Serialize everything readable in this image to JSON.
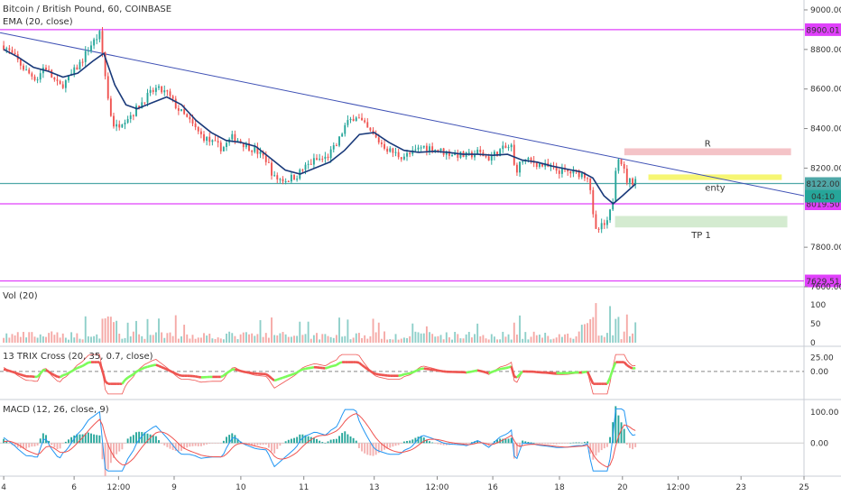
{
  "chart_data": {
    "type": "candlestick",
    "title": "Bitcoin / British Pound, 60, COINBASE",
    "overlay_label": "EMA (20, close)",
    "price_axis": {
      "range": [
        7600,
        9050
      ],
      "ticks": [
        "9000.00",
        "8800.00",
        "8600.00",
        "8400.00",
        "8200.00",
        "7800.00",
        "7600.00"
      ],
      "tick_values": [
        9000,
        8800,
        8600,
        8400,
        8200,
        7800,
        7600
      ]
    },
    "x_ticks": [
      {
        "label": "4",
        "x": 0.0
      },
      {
        "label": "6",
        "x": 1.9
      },
      {
        "label": "12:00",
        "x": 3.1
      },
      {
        "label": "9",
        "x": 4.6
      },
      {
        "label": "10",
        "x": 6.4
      },
      {
        "label": "11",
        "x": 8.1
      },
      {
        "label": "13",
        "x": 10.0
      },
      {
        "label": "12:00",
        "x": 11.7
      },
      {
        "label": "16",
        "x": 13.2
      },
      {
        "label": "18",
        "x": 15.0
      },
      {
        "label": "20",
        "x": 16.7
      },
      {
        "label": "12:00",
        "x": 18.2
      },
      {
        "label": "23",
        "x": 19.9
      },
      {
        "label": "25",
        "x": 21.6
      }
    ],
    "x_range": [
      -0.1,
      21.6
    ],
    "horizontal_lines": [
      {
        "value": 8900.01,
        "label": "8900.01",
        "color": "#e040fb"
      },
      {
        "value": 8019.5,
        "label": "8019.50",
        "color": "#e040fb"
      },
      {
        "value": 7629.51,
        "label": "7629.51",
        "color": "#e040fb"
      },
      {
        "value": 8122.0,
        "label": "8122.00",
        "color": "#4fa8a8"
      }
    ],
    "countdown": "04:10",
    "trendline": {
      "start": [
        -0.1,
        8885
      ],
      "end": [
        21.6,
        8060
      ],
      "color": "#3f51b5"
    },
    "zones": [
      {
        "label": "R",
        "x": [
          16.75,
          21.25
        ],
        "y": [
          8265,
          8300
        ],
        "color": "#f2b8bd"
      },
      {
        "label": "enty",
        "x": [
          17.4,
          21.0
        ],
        "y": [
          8140,
          8168
        ],
        "color": "#f5f55a"
      },
      {
        "label": "TP 1",
        "x": [
          16.5,
          21.15
        ],
        "y": [
          7900,
          7958
        ],
        "color": "#cce8c8"
      }
    ],
    "price_path": [
      [
        0.0,
        8820
      ],
      [
        0.3,
        8760
      ],
      [
        0.6,
        8690
      ],
      [
        0.9,
        8650
      ],
      [
        1.1,
        8720
      ],
      [
        1.3,
        8660
      ],
      [
        1.5,
        8610
      ],
      [
        1.7,
        8640
      ],
      [
        1.9,
        8690
      ],
      [
        2.1,
        8740
      ],
      [
        2.3,
        8810
      ],
      [
        2.6,
        8880
      ],
      [
        2.85,
        8500
      ],
      [
        3.0,
        8400
      ],
      [
        3.2,
        8440
      ],
      [
        3.5,
        8480
      ],
      [
        3.8,
        8550
      ],
      [
        4.1,
        8600
      ],
      [
        4.4,
        8580
      ],
      [
        4.7,
        8500
      ],
      [
        5.0,
        8440
      ],
      [
        5.3,
        8370
      ],
      [
        5.6,
        8330
      ],
      [
        5.9,
        8300
      ],
      [
        6.2,
        8360
      ],
      [
        6.5,
        8320
      ],
      [
        6.8,
        8290
      ],
      [
        7.1,
        8240
      ],
      [
        7.3,
        8150
      ],
      [
        7.6,
        8140
      ],
      [
        7.9,
        8160
      ],
      [
        8.1,
        8200
      ],
      [
        8.4,
        8240
      ],
      [
        8.7,
        8250
      ],
      [
        9.0,
        8320
      ],
      [
        9.2,
        8410
      ],
      [
        9.5,
        8470
      ],
      [
        9.8,
        8400
      ],
      [
        10.1,
        8340
      ],
      [
        10.4,
        8290
      ],
      [
        10.7,
        8260
      ],
      [
        11.0,
        8270
      ],
      [
        11.3,
        8310
      ],
      [
        11.6,
        8300
      ],
      [
        11.9,
        8280
      ],
      [
        12.2,
        8270
      ],
      [
        12.5,
        8260
      ],
      [
        12.8,
        8280
      ],
      [
        13.1,
        8250
      ],
      [
        13.4,
        8290
      ],
      [
        13.7,
        8310
      ],
      [
        13.8,
        8180
      ],
      [
        14.0,
        8240
      ],
      [
        14.3,
        8230
      ],
      [
        14.6,
        8210
      ],
      [
        14.9,
        8190
      ],
      [
        15.2,
        8180
      ],
      [
        15.5,
        8175
      ],
      [
        15.8,
        8160
      ],
      [
        15.95,
        7870
      ],
      [
        16.1,
        7900
      ],
      [
        16.3,
        7920
      ],
      [
        16.45,
        8050
      ],
      [
        16.55,
        8280
      ],
      [
        16.7,
        8220
      ],
      [
        16.8,
        8140
      ],
      [
        16.95,
        8130
      ],
      [
        17.05,
        8150
      ]
    ],
    "ema_path": [
      [
        0.0,
        8800
      ],
      [
        0.4,
        8760
      ],
      [
        0.8,
        8710
      ],
      [
        1.2,
        8690
      ],
      [
        1.6,
        8660
      ],
      [
        2.0,
        8680
      ],
      [
        2.4,
        8740
      ],
      [
        2.7,
        8780
      ],
      [
        3.0,
        8620
      ],
      [
        3.3,
        8520
      ],
      [
        3.6,
        8500
      ],
      [
        4.0,
        8530
      ],
      [
        4.4,
        8560
      ],
      [
        4.8,
        8520
      ],
      [
        5.2,
        8440
      ],
      [
        5.6,
        8380
      ],
      [
        6.0,
        8340
      ],
      [
        6.4,
        8330
      ],
      [
        6.8,
        8310
      ],
      [
        7.2,
        8250
      ],
      [
        7.6,
        8190
      ],
      [
        8.0,
        8170
      ],
      [
        8.4,
        8200
      ],
      [
        8.8,
        8230
      ],
      [
        9.2,
        8290
      ],
      [
        9.6,
        8370
      ],
      [
        10.0,
        8380
      ],
      [
        10.4,
        8330
      ],
      [
        10.8,
        8290
      ],
      [
        11.2,
        8280
      ],
      [
        11.6,
        8285
      ],
      [
        12.0,
        8280
      ],
      [
        12.4,
        8270
      ],
      [
        12.8,
        8270
      ],
      [
        13.2,
        8265
      ],
      [
        13.6,
        8270
      ],
      [
        14.0,
        8240
      ],
      [
        14.4,
        8230
      ],
      [
        14.8,
        8210
      ],
      [
        15.2,
        8195
      ],
      [
        15.6,
        8180
      ],
      [
        15.9,
        8150
      ],
      [
        16.2,
        8060
      ],
      [
        16.45,
        8020
      ],
      [
        16.7,
        8060
      ],
      [
        17.05,
        8120
      ]
    ],
    "volume_axis": {
      "label": "Vol (20)",
      "range": [
        0,
        110
      ],
      "ticks": [
        "100",
        "50",
        "0"
      ],
      "tick_values": [
        100,
        50,
        0
      ]
    },
    "trix_axis": {
      "label": "13 TRIX Cross (20, 35, 0.7, close)",
      "range": [
        -45,
        35
      ],
      "ticks": [
        "25.00",
        "0.00"
      ],
      "tick_values": [
        25,
        0
      ]
    },
    "macd_axis": {
      "label": "MACD (12, 26, close, 9)",
      "range": [
        -95,
        120
      ],
      "ticks": [
        "100.00",
        "0.00"
      ],
      "tick_values": [
        100,
        0
      ]
    },
    "series_colors": {
      "up": "#26a69a",
      "down": "#ef5350",
      "ema": "#1a3a7a",
      "trix_down": "#ef5350",
      "trix_up": "#7cfc5a",
      "macd_line": "#2196f3",
      "signal_line": "#ef5350",
      "hist_up": "#26a69a",
      "hist_down": "#f3b0b0",
      "zero_line": "#888888"
    }
  }
}
